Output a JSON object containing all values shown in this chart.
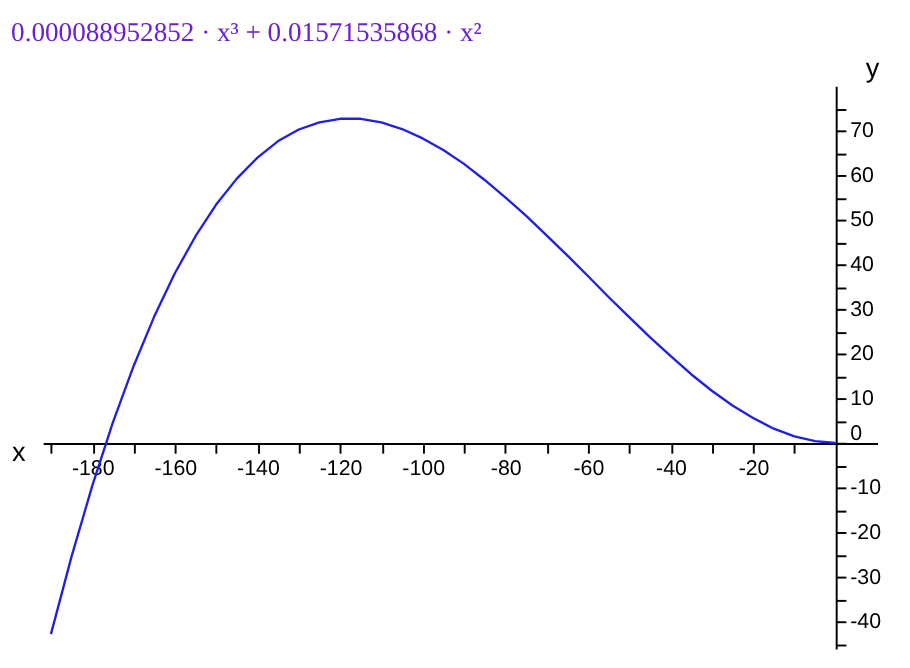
{
  "chart_data": {
    "type": "line",
    "title": "0.000088952852 · x³ + 0.01571535868 · x²",
    "xlabel": "x",
    "ylabel": "y",
    "x": [
      -190,
      -185,
      -180,
      -175,
      -170,
      -165,
      -160,
      -155,
      -150,
      -145,
      -140,
      -135,
      -130,
      -125,
      -120,
      -115,
      -110,
      -105,
      -100,
      -95,
      -90,
      -85,
      -80,
      -75,
      -70,
      -65,
      -60,
      -55,
      -50,
      -45,
      -40,
      -35,
      -30,
      -25,
      -20,
      -15,
      -10,
      -5,
      0
    ],
    "series": [
      {
        "color": "#2020e0",
        "values": [
          -42.8,
          -25.4,
          -9.6,
          4.6,
          17.2,
          28.3,
          38.0,
          46.3,
          53.4,
          59.2,
          63.9,
          67.6,
          70.2,
          71.8,
          72.6,
          72.6,
          71.8,
          70.3,
          68.2,
          65.6,
          62.5,
          58.9,
          55.0,
          50.9,
          46.5,
          42.0,
          37.4,
          32.7,
          28.2,
          23.7,
          19.5,
          15.4,
          11.7,
          8.4,
          5.6,
          3.2,
          1.5,
          0.4,
          0
        ]
      }
    ],
    "xlim": [
      -192,
      10
    ],
    "ylim": [
      -46,
      80
    ],
    "xticks": [
      {
        "value": -190,
        "label": null
      },
      -180,
      {
        "value": -170,
        "label": null
      },
      -160,
      {
        "value": -150,
        "label": null
      },
      -140,
      {
        "value": -130,
        "label": null
      },
      -120,
      {
        "value": -110,
        "label": null
      },
      -100,
      {
        "value": -90,
        "label": null
      },
      -80,
      {
        "value": -70,
        "label": null
      },
      -60,
      {
        "value": -50,
        "label": null
      },
      -40,
      {
        "value": -30,
        "label": null
      },
      -20,
      {
        "value": -10,
        "label": null
      }
    ],
    "yticks": [
      {
        "value": -45,
        "label": null
      },
      -40,
      {
        "value": -35,
        "label": null
      },
      -30,
      {
        "value": -25,
        "label": null
      },
      -20,
      {
        "value": -15,
        "label": null
      },
      -10,
      {
        "value": -5,
        "label": null
      },
      0,
      {
        "value": 5,
        "label": null
      },
      10,
      {
        "value": 15,
        "label": null
      },
      20,
      {
        "value": 25,
        "label": null
      },
      30,
      {
        "value": 35,
        "label": null
      },
      40,
      {
        "value": 45,
        "label": null
      },
      50,
      {
        "value": 55,
        "label": null
      },
      60,
      {
        "value": 65,
        "label": null
      },
      70,
      {
        "value": 75,
        "label": null
      }
    ],
    "grid": false,
    "marker": "none",
    "line_style": "solid"
  }
}
